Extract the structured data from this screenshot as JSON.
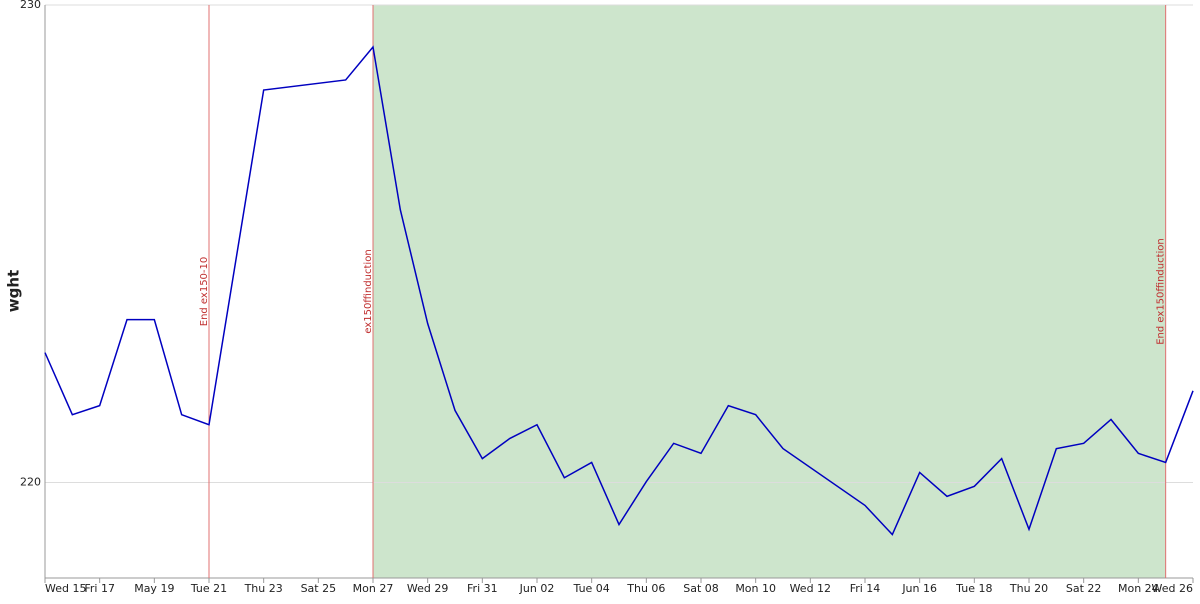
{
  "chart_data": {
    "type": "line",
    "y_label": "wght",
    "x": [
      "May 15",
      "May 16",
      "May 17",
      "May 18",
      "May 19",
      "May 20",
      "May 21",
      "May 23",
      "May 26",
      "May 27",
      "May 28",
      "May 29",
      "May 30",
      "May 31",
      "Jun 01",
      "Jun 02",
      "Jun 03",
      "Jun 04",
      "Jun 05",
      "Jun 06",
      "Jun 07",
      "Jun 08",
      "Jun 09",
      "Jun 10",
      "Jun 11",
      "Jun 14",
      "Jun 15",
      "Jun 16",
      "Jun 17",
      "Jun 18",
      "Jun 19",
      "Jun 20",
      "Jun 21",
      "Jun 22",
      "Jun 23",
      "Jun 24",
      "Jun 25",
      "Jun 26"
    ],
    "series": [
      {
        "name": "wght",
        "color": "#0000c0",
        "values": [
          222.72,
          221.42,
          221.61,
          223.41,
          223.41,
          221.42,
          221.21,
          228.22,
          228.43,
          229.12,
          225.71,
          223.33,
          221.51,
          220.5,
          220.92,
          221.21,
          220.1,
          220.42,
          219.12,
          220.02,
          220.82,
          220.61,
          221.61,
          221.42,
          220.71,
          219.52,
          218.91,
          220.21,
          219.71,
          219.92,
          220.5,
          219.02,
          220.71,
          220.82,
          221.32,
          220.61,
          220.42,
          221.92
        ]
      }
    ],
    "xlim": [
      "May 15",
      "Jun 26"
    ],
    "xticks": [
      {
        "value": "May 15",
        "label": "Wed 15"
      },
      {
        "value": "May 17",
        "label": "Fri 17"
      },
      {
        "value": "May 19",
        "label": "May 19"
      },
      {
        "value": "May 21",
        "label": "Tue 21"
      },
      {
        "value": "May 23",
        "label": "Thu 23"
      },
      {
        "value": "May 25",
        "label": "Sat 25"
      },
      {
        "value": "May 27",
        "label": "Mon 27"
      },
      {
        "value": "May 29",
        "label": "Wed 29"
      },
      {
        "value": "May 31",
        "label": "Fri 31"
      },
      {
        "value": "Jun 02",
        "label": "Jun 02"
      },
      {
        "value": "Jun 04",
        "label": "Tue 04"
      },
      {
        "value": "Jun 06",
        "label": "Thu 06"
      },
      {
        "value": "Jun 08",
        "label": "Sat 08"
      },
      {
        "value": "Jun 10",
        "label": "Mon 10"
      },
      {
        "value": "Jun 12",
        "label": "Wed 12"
      },
      {
        "value": "Jun 14",
        "label": "Fri 14"
      },
      {
        "value": "Jun 16",
        "label": "Jun 16"
      },
      {
        "value": "Jun 18",
        "label": "Tue 18"
      },
      {
        "value": "Jun 20",
        "label": "Thu 20"
      },
      {
        "value": "Jun 22",
        "label": "Sat 22"
      },
      {
        "value": "Jun 24",
        "label": "Mon 24"
      },
      {
        "value": "Jun 26",
        "label": "Wed 26"
      }
    ],
    "ylim": [
      218,
      230
    ],
    "yticks": [
      220,
      230
    ],
    "grid": true,
    "shade": {
      "start": "May 27",
      "end": "Jun 25",
      "color": "#cde5cc"
    },
    "annotations": [
      {
        "x": "May 21",
        "label": "End ex150-10"
      },
      {
        "x": "May 27",
        "label": "ex150ffinduction"
      },
      {
        "x": "Jun 25",
        "label": "End ex150ffinduction"
      }
    ],
    "annotation_color": "#e07070"
  }
}
